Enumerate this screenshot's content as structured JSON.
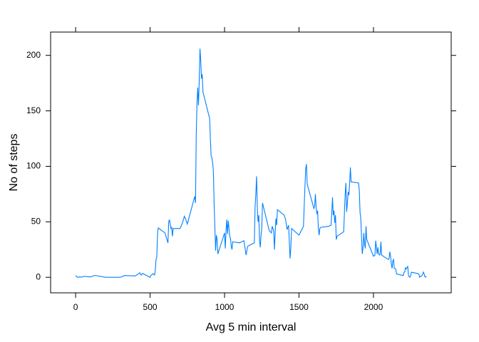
{
  "chart_data": {
    "type": "line",
    "xlabel": "Avg 5 min interval",
    "ylabel": "No of steps",
    "x": [
      0,
      10,
      20,
      30,
      40,
      55,
      100,
      130,
      200,
      230,
      300,
      330,
      400,
      420,
      430,
      440,
      450,
      500,
      505,
      520,
      530,
      535,
      540,
      545,
      550,
      555,
      600,
      620,
      625,
      630,
      640,
      645,
      650,
      655,
      700,
      705,
      720,
      730,
      740,
      750,
      800,
      805,
      810,
      815,
      820,
      825,
      830,
      835,
      840,
      845,
      850,
      855,
      900,
      905,
      910,
      915,
      920,
      925,
      930,
      935,
      940,
      945,
      950,
      955,
      1000,
      1005,
      1010,
      1015,
      1020,
      1025,
      1030,
      1035,
      1040,
      1045,
      1050,
      1055,
      1100,
      1130,
      1145,
      1155,
      1200,
      1205,
      1210,
      1215,
      1220,
      1225,
      1230,
      1235,
      1240,
      1245,
      1250,
      1255,
      1300,
      1315,
      1320,
      1330,
      1335,
      1340,
      1345,
      1350,
      1355,
      1400,
      1410,
      1420,
      1430,
      1440,
      1445,
      1450,
      1500,
      1530,
      1535,
      1540,
      1545,
      1550,
      1555,
      1600,
      1605,
      1610,
      1615,
      1620,
      1625,
      1630,
      1635,
      1640,
      1645,
      1700,
      1715,
      1720,
      1725,
      1730,
      1735,
      1740,
      1745,
      1750,
      1755,
      1800,
      1805,
      1810,
      1815,
      1820,
      1825,
      1830,
      1835,
      1840,
      1845,
      1850,
      1900,
      1905,
      1910,
      1915,
      1920,
      1925,
      1930,
      1935,
      1940,
      1945,
      1950,
      1955,
      2000,
      2010,
      2015,
      2020,
      2025,
      2030,
      2035,
      2040,
      2045,
      2050,
      2055,
      2100,
      2105,
      2110,
      2115,
      2120,
      2125,
      2130,
      2135,
      2140,
      2145,
      2150,
      2155,
      2200,
      2205,
      2210,
      2215,
      2220,
      2225,
      2230,
      2235,
      2240,
      2245,
      2250,
      2255,
      2300,
      2305,
      2310,
      2315,
      2320,
      2325,
      2330,
      2335,
      2340,
      2345,
      2350,
      2355
    ],
    "series": [
      {
        "color": "#0080ff",
        "values": [
          1.7,
          0.1,
          0.1,
          0.5,
          0,
          0.9,
          0.3,
          1.8,
          0,
          0,
          0,
          1.6,
          1.2,
          3.0,
          4.1,
          2.0,
          3.5,
          0,
          1.6,
          3.3,
          2.1,
          6.1,
          16,
          18.3,
          39.5,
          44.5,
          40,
          31,
          50,
          52,
          44,
          45,
          37,
          44,
          44,
          45,
          50,
          55,
          52,
          48,
          73,
          67,
          129,
          157,
          171,
          155,
          177,
          206,
          196,
          179,
          183,
          167,
          143,
          124,
          109,
          108,
          103,
          96,
          66,
          45,
          24,
          38,
          34,
          21,
          40,
          26,
          42,
          52,
          39,
          51,
          44,
          37,
          35,
          28,
          25,
          32,
          31,
          33,
          20,
          28,
          31,
          63,
          75,
          91,
          63,
          50,
          56,
          33,
          27,
          38,
          44,
          67,
          42,
          40,
          46,
          42,
          25,
          40,
          53,
          47,
          61,
          56,
          52,
          43,
          47,
          17,
          26,
          44,
          38,
          46,
          65,
          82,
          98,
          102,
          84,
          62,
          64,
          75,
          63,
          57,
          60,
          44,
          38,
          44,
          45,
          46,
          47,
          58,
          72,
          56,
          60,
          49,
          56,
          34,
          37,
          41,
          58,
          75,
          85,
          59,
          67,
          77,
          74,
          85,
          99,
          86,
          85,
          78,
          58,
          53,
          36,
          21,
          27,
          40,
          30,
          26,
          46,
          34,
          19,
          20,
          33,
          27,
          21,
          27,
          21,
          20,
          21,
          32,
          20,
          16,
          17,
          23,
          19,
          12,
          8,
          15,
          16,
          8,
          8,
          7,
          3,
          1.6,
          4.6,
          4.8,
          8.5,
          7.5,
          8.7,
          9.8,
          2.2,
          0.3,
          0.1,
          1.6,
          4.6,
          3.3,
          2.8,
          0,
          0.8,
          1,
          1.5,
          2.6,
          4.7,
          3.3,
          0.6,
          0.2,
          1.1
        ]
      }
    ],
    "xlim": [
      -168,
      2522
    ],
    "ylim": [
      -14,
      221
    ],
    "xticks": [
      0,
      500,
      1000,
      1500,
      2000
    ],
    "yticks": [
      0,
      50,
      100,
      150,
      200
    ]
  }
}
